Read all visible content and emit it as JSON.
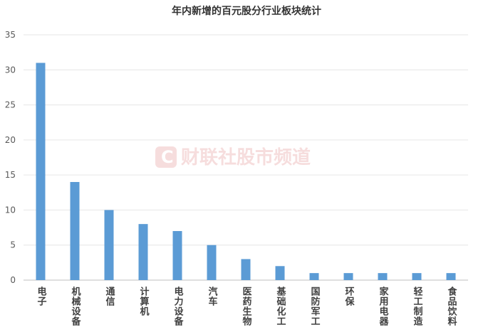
{
  "chart_data": {
    "type": "bar",
    "title": "年内新增的百元股分行业板块统计",
    "watermark": "财联社股市频道",
    "categories": [
      "电子",
      "机械设备",
      "通信",
      "计算机",
      "电力设备",
      "汽车",
      "医药生物",
      "基础化工",
      "国防军工",
      "环保",
      "家用电器",
      "轻工制造",
      "食品饮料"
    ],
    "values": [
      31,
      14,
      10,
      8,
      7,
      5,
      3,
      2,
      1,
      1,
      1,
      1,
      1
    ],
    "color": "#5b9bd5",
    "ylim": [
      0,
      35
    ],
    "yticks": [
      0,
      5,
      10,
      15,
      20,
      25,
      30,
      35
    ],
    "grid": true
  }
}
